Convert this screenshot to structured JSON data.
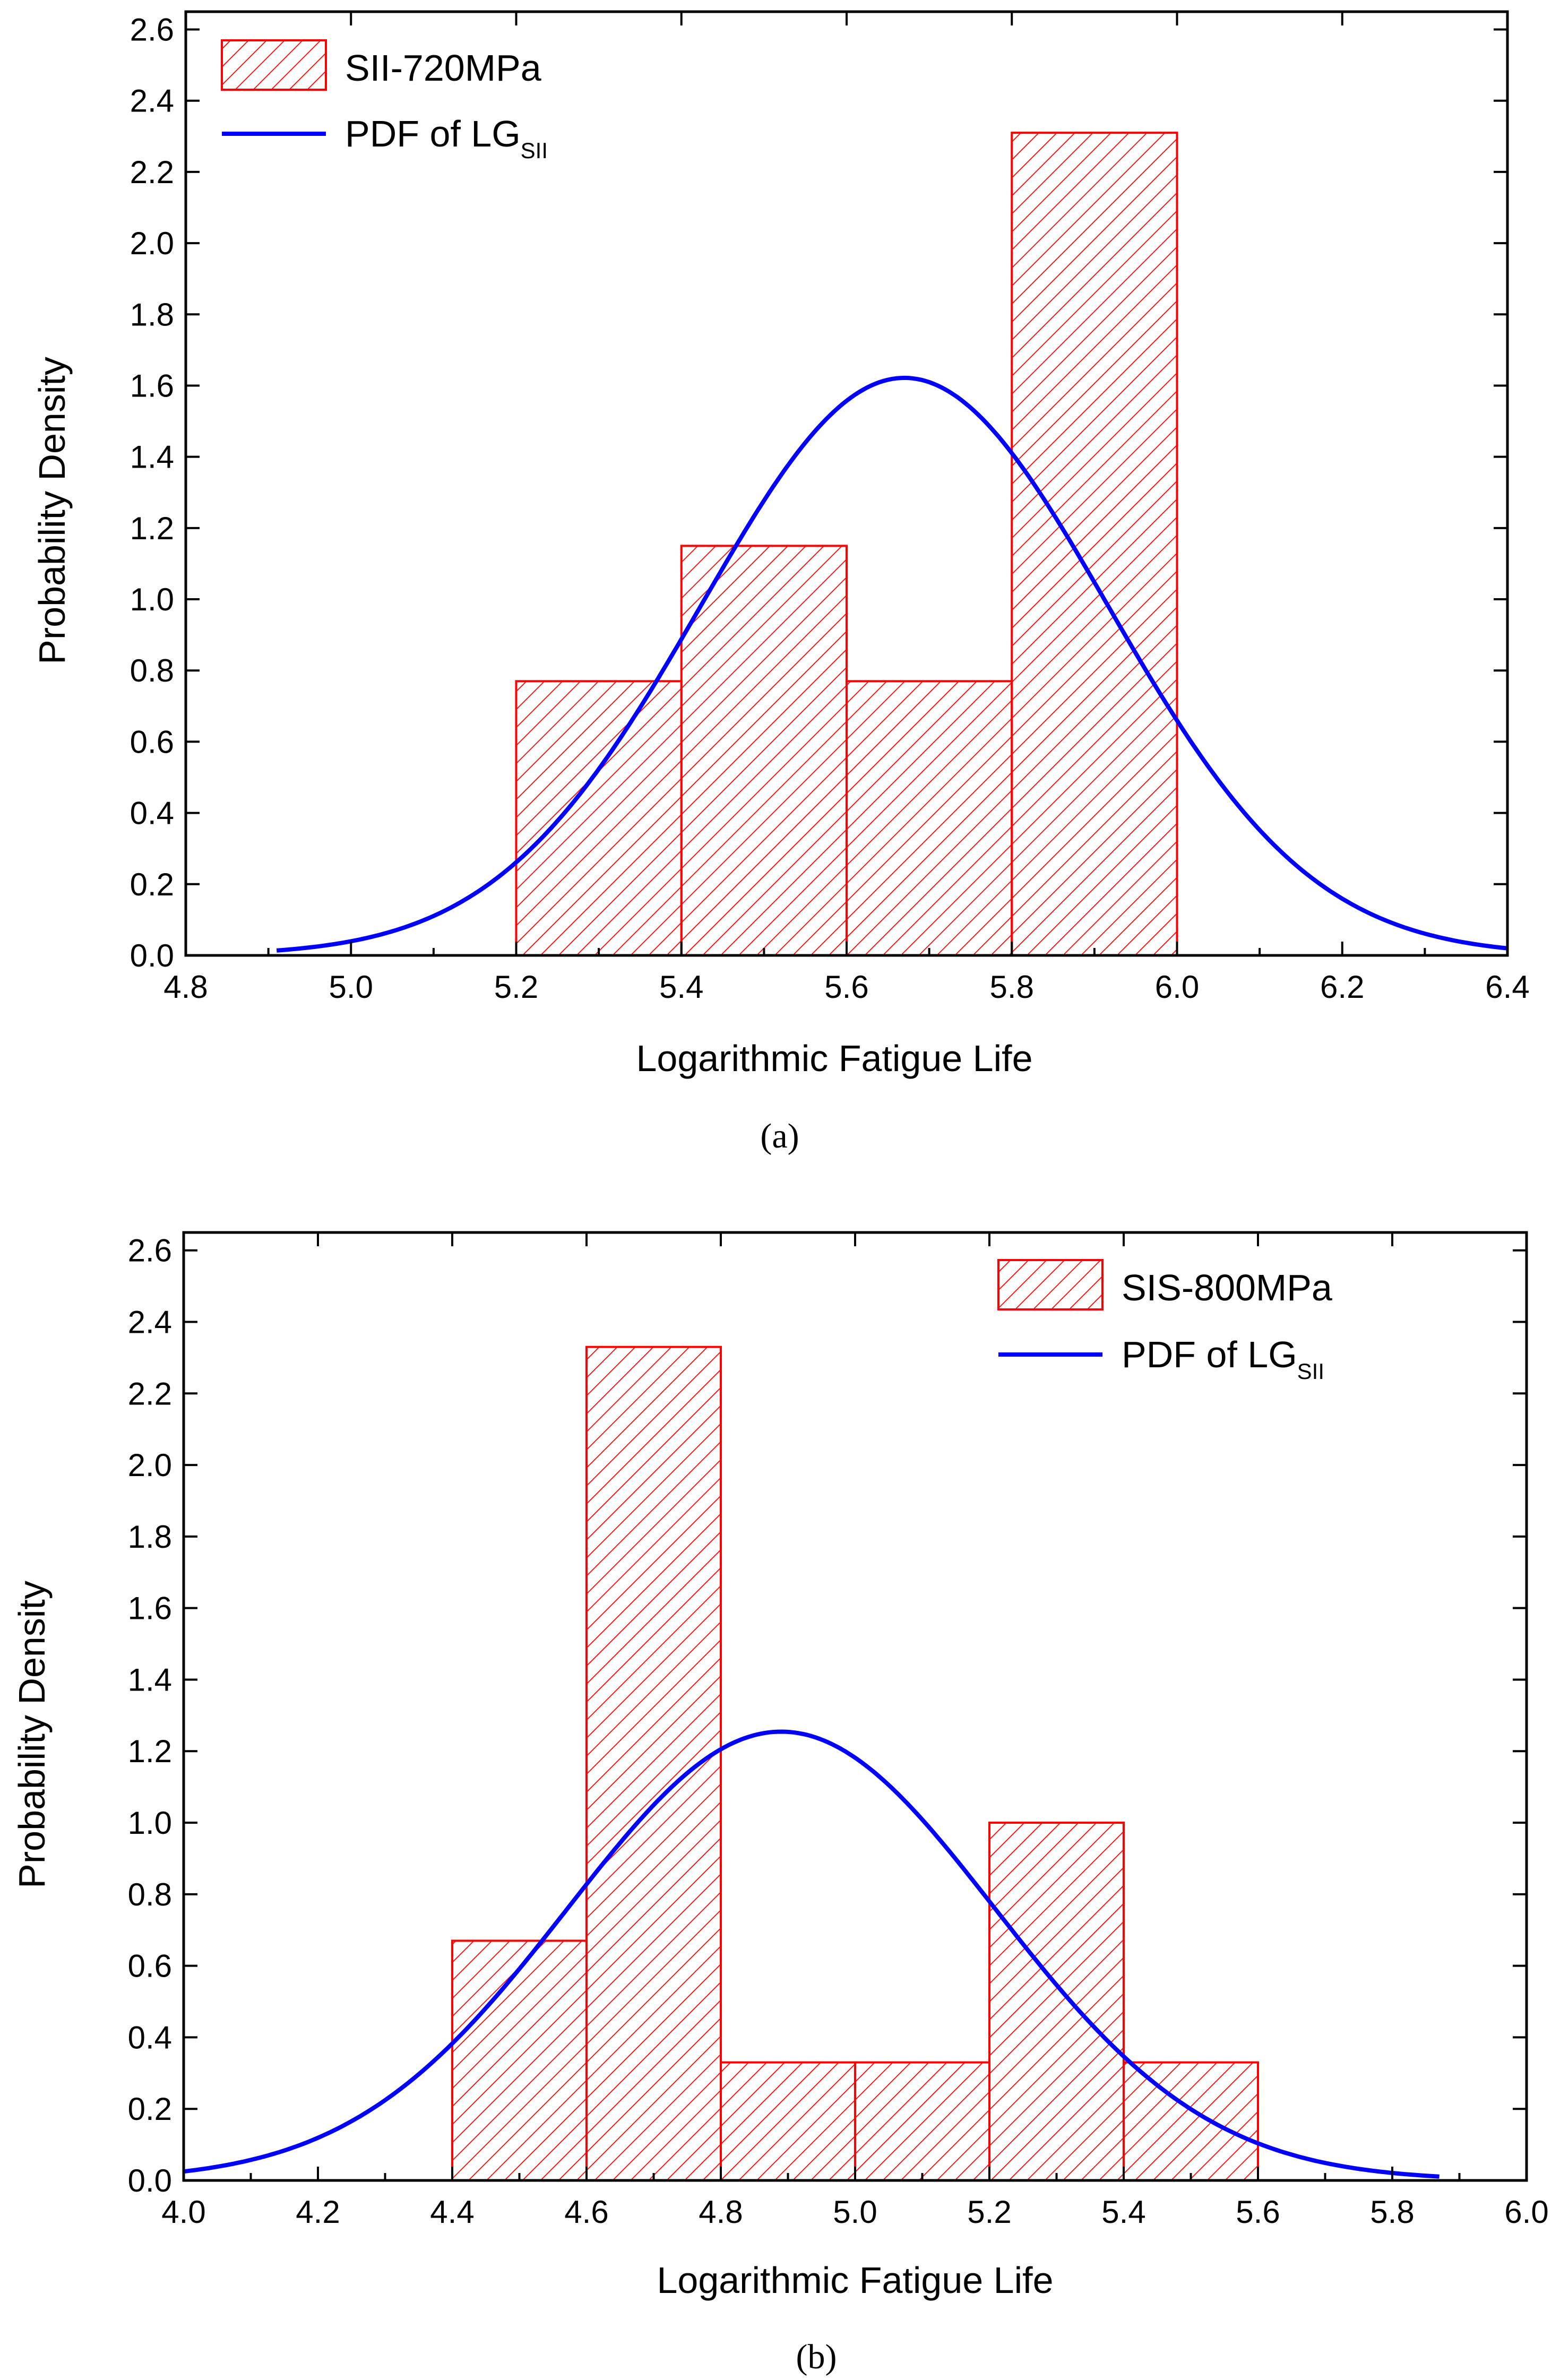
{
  "colors": {
    "bar": "#ff0000",
    "curve": "#0000ff",
    "axis": "#000000"
  },
  "chart_data": [
    {
      "type": "bar",
      "caption": "(a)",
      "xlabel": "Logarithmic Fatigue Life",
      "ylabel": "Probability Density",
      "xlim": [
        4.8,
        6.4
      ],
      "ylim": [
        0,
        2.65
      ],
      "xticks": [
        "4.8",
        "5.0",
        "5.2",
        "5.4",
        "5.6",
        "5.8",
        "6.0",
        "6.2",
        "6.4"
      ],
      "yticks": [
        "0.0",
        "0.2",
        "0.4",
        "0.6",
        "0.8",
        "1.0",
        "1.2",
        "1.4",
        "1.6",
        "1.8",
        "2.0",
        "2.2",
        "2.4",
        "2.6"
      ],
      "legend_position": "top-left",
      "histogram": {
        "name": "SII-720MPa",
        "bins": [
          {
            "x0": 5.2,
            "x1": 5.4,
            "value": 0.77
          },
          {
            "x0": 5.4,
            "x1": 5.6,
            "value": 1.15
          },
          {
            "x0": 5.6,
            "x1": 5.8,
            "value": 0.77
          },
          {
            "x0": 5.8,
            "x1": 6.0,
            "value": 2.31
          }
        ]
      },
      "pdf": {
        "name_main": "PDF of LG",
        "name_sub": "SII",
        "mean": 5.67,
        "std": 0.246,
        "x_start": 4.91,
        "x_end": 6.4
      }
    },
    {
      "type": "bar",
      "caption": "(b)",
      "xlabel": "Logarithmic Fatigue Life",
      "ylabel": "Probability Density",
      "xlim": [
        4.0,
        6.0
      ],
      "ylim": [
        0,
        2.65
      ],
      "xticks": [
        "4.0",
        "4.2",
        "4.4",
        "4.6",
        "4.8",
        "5.0",
        "5.2",
        "5.4",
        "5.6",
        "5.8",
        "6.0"
      ],
      "yticks": [
        "0.0",
        "0.2",
        "0.4",
        "0.6",
        "0.8",
        "1.0",
        "1.2",
        "1.4",
        "1.6",
        "1.8",
        "2.0",
        "2.2",
        "2.4",
        "2.6"
      ],
      "legend_position": "top-right",
      "histogram": {
        "name": "SIS-800MPa",
        "bins": [
          {
            "x0": 4.4,
            "x1": 4.6,
            "value": 0.67
          },
          {
            "x0": 4.6,
            "x1": 4.8,
            "value": 2.33
          },
          {
            "x0": 4.8,
            "x1": 5.0,
            "value": 0.33
          },
          {
            "x0": 5.0,
            "x1": 5.2,
            "value": 0.33
          },
          {
            "x0": 5.2,
            "x1": 5.4,
            "value": 1.0
          },
          {
            "x0": 5.4,
            "x1": 5.6,
            "value": 0.33
          }
        ]
      },
      "pdf": {
        "name_main": "PDF of LG",
        "name_sub": "SII",
        "mean": 4.89,
        "std": 0.318,
        "x_start": 4.0,
        "x_end": 5.87
      }
    }
  ]
}
